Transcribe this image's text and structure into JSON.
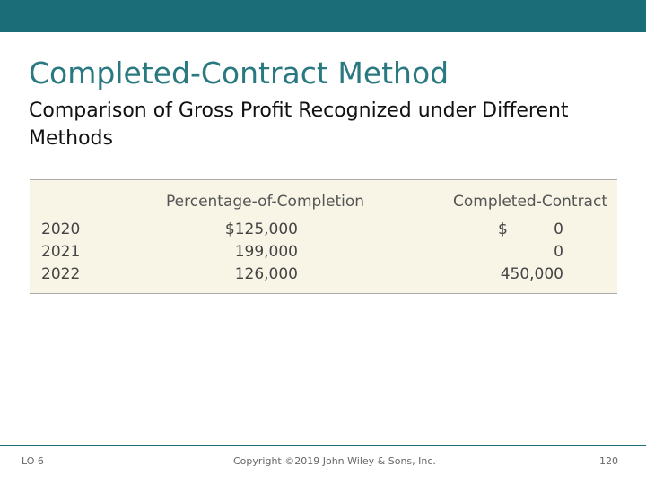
{
  "header": {
    "title": "Completed-Contract Method",
    "subtitle": "Comparison of Gross Profit Recognized under Different Methods"
  },
  "table": {
    "columns": [
      "Percentage-of-Completion",
      "Completed-Contract"
    ],
    "rows": [
      {
        "year": "2020",
        "poc": "$125,000",
        "cc_currency": "$",
        "cc": "0"
      },
      {
        "year": "2021",
        "poc": "199,000",
        "cc": "0"
      },
      {
        "year": "2022",
        "poc": "126,000",
        "cc": "450,000"
      }
    ]
  },
  "footer": {
    "left": "LO 6",
    "center": "Copyright ©2019 John Wiley & Sons, Inc.",
    "right": "120"
  }
}
